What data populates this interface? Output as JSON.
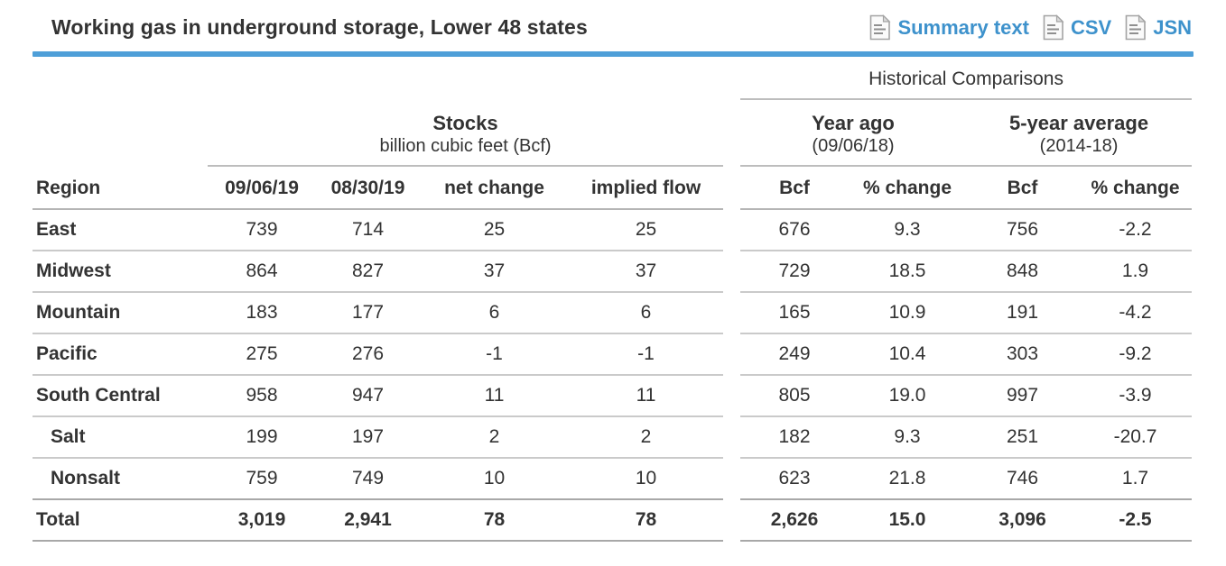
{
  "header": {
    "title": "Working gas in underground storage, Lower 48 states",
    "links": [
      {
        "label": "Summary text"
      },
      {
        "label": "CSV"
      },
      {
        "label": "JSN"
      }
    ]
  },
  "table": {
    "group_headers": {
      "historical": "Historical Comparisons",
      "stocks_title": "Stocks",
      "stocks_subtitle": "billion cubic feet (Bcf)",
      "year_ago_title": "Year ago",
      "year_ago_subtitle": "(09/06/18)",
      "five_year_title": "5-year average",
      "five_year_subtitle": "(2014-18)"
    },
    "columns": [
      "Region",
      "09/06/19",
      "08/30/19",
      "net change",
      "implied flow",
      "Bcf",
      "% change",
      "Bcf",
      "% change"
    ],
    "rows": [
      {
        "region": "East",
        "indent": false,
        "total": false,
        "values": [
          "739",
          "714",
          "25",
          "25",
          "676",
          "9.3",
          "756",
          "-2.2"
        ]
      },
      {
        "region": "Midwest",
        "indent": false,
        "total": false,
        "values": [
          "864",
          "827",
          "37",
          "37",
          "729",
          "18.5",
          "848",
          "1.9"
        ]
      },
      {
        "region": "Mountain",
        "indent": false,
        "total": false,
        "values": [
          "183",
          "177",
          "6",
          "6",
          "165",
          "10.9",
          "191",
          "-4.2"
        ]
      },
      {
        "region": "Pacific",
        "indent": false,
        "total": false,
        "values": [
          "275",
          "276",
          "-1",
          "-1",
          "249",
          "10.4",
          "303",
          "-9.2"
        ]
      },
      {
        "region": "South Central",
        "indent": false,
        "total": false,
        "values": [
          "958",
          "947",
          "11",
          "11",
          "805",
          "19.0",
          "997",
          "-3.9"
        ]
      },
      {
        "region": "Salt",
        "indent": true,
        "total": false,
        "values": [
          "199",
          "197",
          "2",
          "2",
          "182",
          "9.3",
          "251",
          "-20.7"
        ]
      },
      {
        "region": "Nonsalt",
        "indent": true,
        "total": false,
        "values": [
          "759",
          "749",
          "10",
          "10",
          "623",
          "21.8",
          "746",
          "1.7"
        ]
      },
      {
        "region": "Total",
        "indent": false,
        "total": true,
        "values": [
          "3,019",
          "2,941",
          "78",
          "78",
          "2,626",
          "15.0",
          "3,096",
          "-2.5"
        ]
      }
    ]
  },
  "colors": {
    "accent_blue": "#4e9fd8",
    "link_blue": "#3e92cc"
  }
}
